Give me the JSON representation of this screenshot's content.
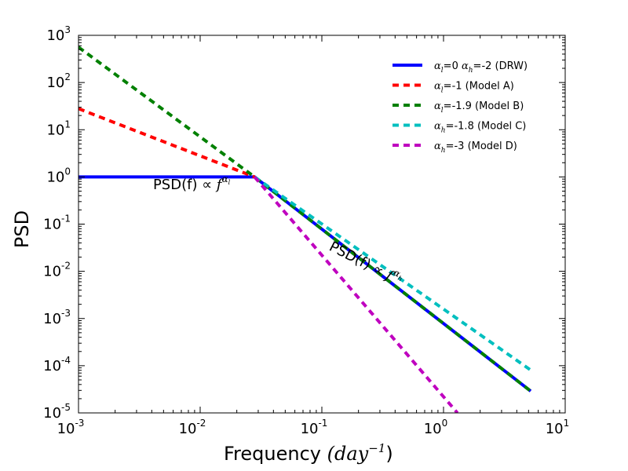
{
  "chart_data": {
    "type": "line",
    "xscale": "log",
    "yscale": "log",
    "xlim": [
      0.001,
      10
    ],
    "ylim": [
      1e-05,
      1000
    ],
    "xlabel": "Frequency",
    "xlabel_unit": "(day",
    "xlabel_unit_exp": "−1",
    "xlabel_unit_close": ")",
    "ylabel": "PSD",
    "x_ticks": [
      {
        "value": 0.001,
        "base": "10",
        "exp": "-3"
      },
      {
        "value": 0.01,
        "base": "10",
        "exp": "-2"
      },
      {
        "value": 0.1,
        "base": "10",
        "exp": "-1"
      },
      {
        "value": 1,
        "base": "10",
        "exp": "0"
      },
      {
        "value": 10,
        "base": "10",
        "exp": "1"
      }
    ],
    "y_ticks": [
      {
        "value": 1000,
        "base": "10",
        "exp": "3"
      },
      {
        "value": 100,
        "base": "10",
        "exp": "2"
      },
      {
        "value": 10,
        "base": "10",
        "exp": "1"
      },
      {
        "value": 1,
        "base": "10",
        "exp": "0"
      },
      {
        "value": 0.1,
        "base": "10",
        "exp": "-1"
      },
      {
        "value": 0.01,
        "base": "10",
        "exp": "-2"
      },
      {
        "value": 0.001,
        "base": "10",
        "exp": "-3"
      },
      {
        "value": 0.0001,
        "base": "10",
        "exp": "-4"
      },
      {
        "value": 1e-05,
        "base": "10",
        "exp": "-5"
      }
    ],
    "series": [
      {
        "name": "α_l=0 α_h=-2 (DRW)",
        "legend_parts": [
          "α",
          "l",
          "=0 ",
          "α",
          "h",
          "=-2 (DRW)"
        ],
        "color": "#0000ff",
        "style": "solid",
        "x": [
          0.001,
          0.028,
          5.2
        ],
        "y": [
          1.0,
          1.0,
          2.9e-05
        ]
      },
      {
        "name": "α_l=-1 (Model A)",
        "legend_parts": [
          "α",
          "l",
          "=-1 (Model A)"
        ],
        "color": "#ff0000",
        "style": "dashed",
        "x": [
          0.001,
          0.028
        ],
        "y": [
          28,
          1.0
        ]
      },
      {
        "name": "α_l=-1.9 (Model B)",
        "legend_parts": [
          "α",
          "l",
          "=-1.9 (Model B)"
        ],
        "color": "#008000",
        "style": "dashed",
        "x": [
          0.001,
          0.028,
          5.2
        ],
        "y": [
          560,
          1.0,
          2.9e-05
        ]
      },
      {
        "name": "α_h=-1.8 (Model C)",
        "legend_parts": [
          "α",
          "h",
          "=-1.8 (Model C)"
        ],
        "color": "#00bfbf",
        "style": "dashed",
        "x": [
          0.028,
          5.2
        ],
        "y": [
          1.0,
          8.1e-05
        ]
      },
      {
        "name": "α_h=-3 (Model D)",
        "legend_parts": [
          "α",
          "h",
          "=-3 (Model D)"
        ],
        "color": "#bf00bf",
        "style": "dashed",
        "x": [
          0.028,
          1.3
        ],
        "y": [
          1.0,
          1e-05
        ]
      }
    ],
    "annotations": [
      {
        "text": "PSD(f)",
        "symbol": "∝",
        "var": "f",
        "exp_base": "α",
        "exp_sub": "l",
        "x": 0.0085,
        "y": 0.55,
        "rotation": 0
      },
      {
        "text": "PSD(f)",
        "symbol": "∝",
        "var": "f",
        "exp_base": "α",
        "exp_sub": "h",
        "x": 0.22,
        "y": 0.012,
        "rotation": 27
      }
    ],
    "legend_position": "top-right"
  }
}
